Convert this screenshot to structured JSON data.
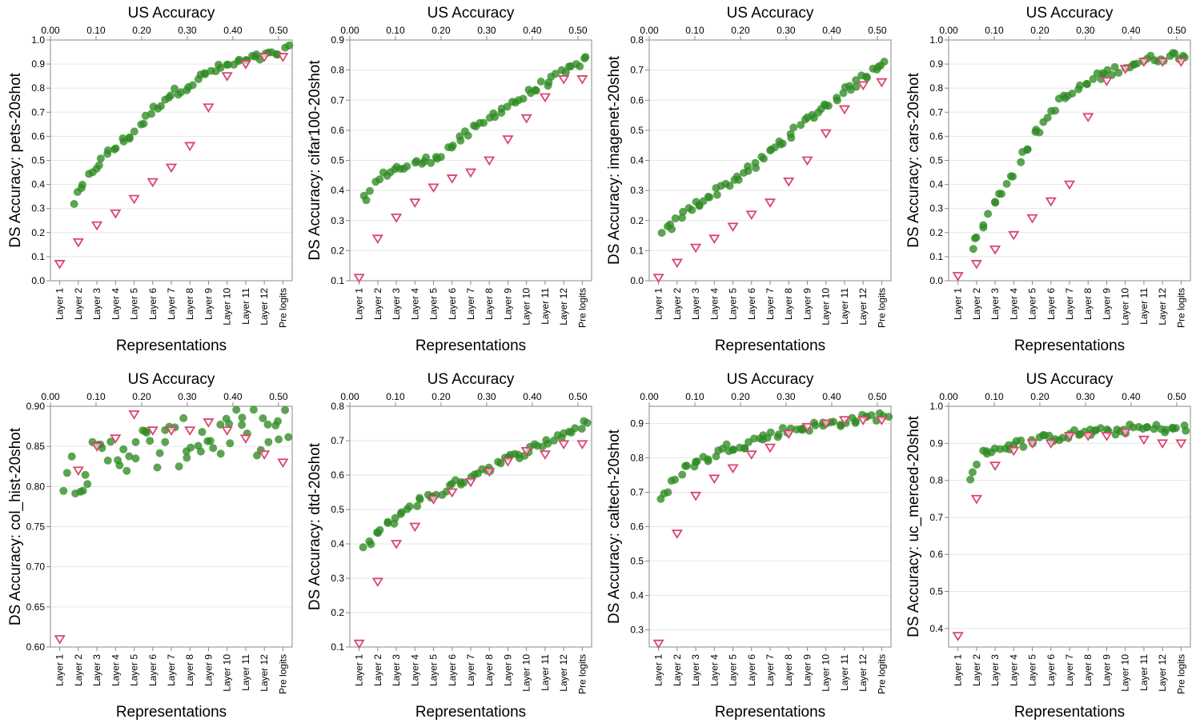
{
  "colors": {
    "dots": "#2e8b22",
    "triangles": "#d9466e",
    "grid": "#e6e6e6",
    "axis": "#888888"
  },
  "common": {
    "top_axis_title": "US Accuracy",
    "x_axis_title": "Representations",
    "top_ticks": [
      "0.00",
      "0.10",
      "0.20",
      "0.30",
      "0.40",
      "0.50"
    ],
    "categories": [
      "Layer 1",
      "Layer 2",
      "Layer 3",
      "Layer 4",
      "Layer 5",
      "Layer 6",
      "Layer 7",
      "Layer 8",
      "Layer 9",
      "Layer 10",
      "Layer 11",
      "Layer 12",
      "Pre logits"
    ]
  },
  "chart_data": [
    {
      "type": "scatter",
      "ylabel": "DS Accuracy: pets-20shot",
      "ylim": [
        0,
        1.0
      ],
      "yticks": [
        "0.0",
        "0.1",
        "0.2",
        "0.3",
        "0.4",
        "0.5",
        "0.6",
        "0.7",
        "0.8",
        "0.9",
        "1.0"
      ],
      "ytick_values": [
        0,
        0.1,
        0.2,
        0.3,
        0.4,
        0.5,
        0.6,
        0.7,
        0.8,
        0.9,
        1.0
      ],
      "xlim": [
        0,
        0.53
      ],
      "us_ticks": [
        0,
        0.1,
        0.2,
        0.3,
        0.4,
        0.5
      ],
      "triangles": [
        0.07,
        0.16,
        0.23,
        0.28,
        0.34,
        0.41,
        0.47,
        0.56,
        0.72,
        0.85,
        0.9,
        0.93,
        0.93
      ],
      "dot_curve": [
        [
          0.05,
          0.32
        ],
        [
          0.09,
          0.45
        ],
        [
          0.12,
          0.52
        ],
        [
          0.16,
          0.58
        ],
        [
          0.19,
          0.63
        ],
        [
          0.23,
          0.72
        ],
        [
          0.26,
          0.77
        ],
        [
          0.31,
          0.82
        ],
        [
          0.35,
          0.87
        ],
        [
          0.4,
          0.9
        ],
        [
          0.44,
          0.92
        ],
        [
          0.49,
          0.94
        ],
        [
          0.52,
          0.96
        ]
      ],
      "dot_range": [
        0.05,
        0.52
      ],
      "dot_count": 60
    },
    {
      "type": "scatter",
      "ylabel": "DS Accuracy: cifar100-20shot",
      "ylim": [
        0.1,
        0.9
      ],
      "yticks": [
        "0.1",
        "0.2",
        "0.3",
        "0.4",
        "0.5",
        "0.6",
        "0.7",
        "0.8",
        "0.9"
      ],
      "ytick_values": [
        0.1,
        0.2,
        0.3,
        0.4,
        0.5,
        0.6,
        0.7,
        0.8,
        0.9
      ],
      "xlim": [
        0,
        0.53
      ],
      "us_ticks": [
        0,
        0.1,
        0.2,
        0.3,
        0.4,
        0.5
      ],
      "triangles": [
        0.11,
        0.24,
        0.31,
        0.36,
        0.41,
        0.44,
        0.46,
        0.5,
        0.57,
        0.64,
        0.71,
        0.77,
        0.77
      ],
      "dot_curve": [
        [
          0.03,
          0.37
        ],
        [
          0.06,
          0.43
        ],
        [
          0.09,
          0.47
        ],
        [
          0.13,
          0.48
        ],
        [
          0.17,
          0.5
        ],
        [
          0.21,
          0.53
        ],
        [
          0.25,
          0.58
        ],
        [
          0.29,
          0.62
        ],
        [
          0.33,
          0.67
        ],
        [
          0.38,
          0.71
        ],
        [
          0.42,
          0.75
        ],
        [
          0.47,
          0.79
        ],
        [
          0.52,
          0.84
        ]
      ],
      "dot_range": [
        0.03,
        0.52
      ],
      "dot_count": 60
    },
    {
      "type": "scatter",
      "ylabel": "DS Accuracy: imagenet-20shot",
      "ylim": [
        0,
        0.8
      ],
      "yticks": [
        "0.0",
        "0.1",
        "0.2",
        "0.3",
        "0.4",
        "0.5",
        "0.6",
        "0.7",
        "0.8"
      ],
      "ytick_values": [
        0,
        0.1,
        0.2,
        0.3,
        0.4,
        0.5,
        0.6,
        0.7,
        0.8
      ],
      "xlim": [
        0,
        0.53
      ],
      "us_ticks": [
        0,
        0.1,
        0.2,
        0.3,
        0.4,
        0.5
      ],
      "triangles": [
        0.01,
        0.06,
        0.11,
        0.14,
        0.18,
        0.22,
        0.26,
        0.33,
        0.4,
        0.49,
        0.57,
        0.65,
        0.66
      ],
      "dot_curve": [
        [
          0.03,
          0.15
        ],
        [
          0.06,
          0.2
        ],
        [
          0.09,
          0.24
        ],
        [
          0.12,
          0.27
        ],
        [
          0.16,
          0.31
        ],
        [
          0.2,
          0.35
        ],
        [
          0.24,
          0.39
        ],
        [
          0.28,
          0.45
        ],
        [
          0.32,
          0.5
        ],
        [
          0.36,
          0.55
        ],
        [
          0.4,
          0.6
        ],
        [
          0.44,
          0.64
        ],
        [
          0.48,
          0.69
        ],
        [
          0.52,
          0.74
        ]
      ],
      "dot_range": [
        0.03,
        0.52
      ],
      "dot_count": 65
    },
    {
      "type": "scatter",
      "ylabel": "DS Accuracy: cars-20shot",
      "ylim": [
        0,
        1.0
      ],
      "yticks": [
        "0.0",
        "0.1",
        "0.2",
        "0.3",
        "0.4",
        "0.5",
        "0.6",
        "0.7",
        "0.8",
        "0.9",
        "1.0"
      ],
      "ytick_values": [
        0,
        0.1,
        0.2,
        0.3,
        0.4,
        0.5,
        0.6,
        0.7,
        0.8,
        0.9,
        1.0
      ],
      "xlim": [
        0,
        0.53
      ],
      "us_ticks": [
        0,
        0.1,
        0.2,
        0.3,
        0.4,
        0.5
      ],
      "triangles": [
        0.02,
        0.07,
        0.13,
        0.19,
        0.26,
        0.33,
        0.4,
        0.68,
        0.83,
        0.88,
        0.91,
        0.91,
        0.91
      ],
      "dot_curve": [
        [
          0.05,
          0.13
        ],
        [
          0.08,
          0.25
        ],
        [
          0.11,
          0.35
        ],
        [
          0.15,
          0.48
        ],
        [
          0.18,
          0.58
        ],
        [
          0.21,
          0.66
        ],
        [
          0.24,
          0.74
        ],
        [
          0.28,
          0.79
        ],
        [
          0.32,
          0.84
        ],
        [
          0.37,
          0.88
        ],
        [
          0.42,
          0.91
        ],
        [
          0.47,
          0.93
        ],
        [
          0.52,
          0.94
        ]
      ],
      "dot_range": [
        0.05,
        0.52
      ],
      "dot_count": 60
    },
    {
      "type": "scatter",
      "ylabel": "DS Accuracy: col_hist-20shot",
      "ylim": [
        0.6,
        0.9
      ],
      "yticks": [
        "0.60",
        "0.65",
        "0.70",
        "0.75",
        "0.80",
        "0.85",
        "0.90"
      ],
      "ytick_values": [
        0.6,
        0.65,
        0.7,
        0.75,
        0.8,
        0.85,
        0.9
      ],
      "xlim": [
        0,
        0.53
      ],
      "us_ticks": [
        0,
        0.1,
        0.2,
        0.3,
        0.4,
        0.5
      ],
      "triangles": [
        0.61,
        0.82,
        0.85,
        0.86,
        0.89,
        0.87,
        0.87,
        0.87,
        0.88,
        0.87,
        0.86,
        0.84,
        0.83
      ],
      "dot_curve": [
        [
          0.03,
          0.818
        ],
        [
          0.07,
          0.823
        ],
        [
          0.11,
          0.83
        ],
        [
          0.15,
          0.845
        ],
        [
          0.19,
          0.852
        ],
        [
          0.23,
          0.845
        ],
        [
          0.27,
          0.852
        ],
        [
          0.31,
          0.858
        ],
        [
          0.35,
          0.862
        ],
        [
          0.4,
          0.866
        ],
        [
          0.45,
          0.868
        ],
        [
          0.52,
          0.868
        ]
      ],
      "dot_range": [
        0.03,
        0.52
      ],
      "dot_count": 62,
      "dot_spread": 0.03
    },
    {
      "type": "scatter",
      "ylabel": "DS Accuracy: dtd-20shot",
      "ylim": [
        0.1,
        0.8
      ],
      "yticks": [
        "0.1",
        "0.2",
        "0.3",
        "0.4",
        "0.5",
        "0.6",
        "0.7",
        "0.8"
      ],
      "ytick_values": [
        0.1,
        0.2,
        0.3,
        0.4,
        0.5,
        0.6,
        0.7,
        0.8
      ],
      "xlim": [
        0,
        0.53
      ],
      "us_ticks": [
        0,
        0.1,
        0.2,
        0.3,
        0.4,
        0.5
      ],
      "triangles": [
        0.11,
        0.29,
        0.4,
        0.45,
        0.53,
        0.55,
        0.58,
        0.61,
        0.64,
        0.67,
        0.66,
        0.69,
        0.69
      ],
      "dot_curve": [
        [
          0.03,
          0.38
        ],
        [
          0.06,
          0.43
        ],
        [
          0.09,
          0.46
        ],
        [
          0.12,
          0.5
        ],
        [
          0.16,
          0.53
        ],
        [
          0.2,
          0.55
        ],
        [
          0.24,
          0.58
        ],
        [
          0.28,
          0.61
        ],
        [
          0.32,
          0.63
        ],
        [
          0.37,
          0.66
        ],
        [
          0.42,
          0.69
        ],
        [
          0.47,
          0.72
        ],
        [
          0.52,
          0.75
        ]
      ],
      "dot_range": [
        0.03,
        0.52
      ],
      "dot_count": 62
    },
    {
      "type": "scatter",
      "ylabel": "DS Accuracy: caltech-20shot",
      "ylim": [
        0.25,
        0.95
      ],
      "yticks": [
        "0.3",
        "0.4",
        "0.5",
        "0.6",
        "0.7",
        "0.8",
        "0.9"
      ],
      "ytick_values": [
        0.3,
        0.4,
        0.5,
        0.6,
        0.7,
        0.8,
        0.9
      ],
      "xlim": [
        0,
        0.53
      ],
      "us_ticks": [
        0,
        0.1,
        0.2,
        0.3,
        0.4,
        0.5
      ],
      "triangles": [
        0.26,
        0.58,
        0.69,
        0.74,
        0.77,
        0.81,
        0.83,
        0.87,
        0.89,
        0.9,
        0.91,
        0.91,
        0.91
      ],
      "dot_curve": [
        [
          0.03,
          0.68
        ],
        [
          0.06,
          0.75
        ],
        [
          0.09,
          0.78
        ],
        [
          0.13,
          0.8
        ],
        [
          0.17,
          0.83
        ],
        [
          0.21,
          0.84
        ],
        [
          0.25,
          0.86
        ],
        [
          0.3,
          0.88
        ],
        [
          0.35,
          0.89
        ],
        [
          0.4,
          0.9
        ],
        [
          0.45,
          0.91
        ],
        [
          0.52,
          0.925
        ]
      ],
      "dot_range": [
        0.03,
        0.52
      ],
      "dot_count": 62
    },
    {
      "type": "scatter",
      "ylabel": "DS Accuracy: uc_merced-20shot",
      "ylim": [
        0.35,
        1.0
      ],
      "yticks": [
        "0.4",
        "0.5",
        "0.6",
        "0.7",
        "0.8",
        "0.9",
        "1.0"
      ],
      "ytick_values": [
        0.4,
        0.5,
        0.6,
        0.7,
        0.8,
        0.9,
        1.0
      ],
      "xlim": [
        0,
        0.53
      ],
      "us_ticks": [
        0,
        0.1,
        0.2,
        0.3,
        0.4,
        0.5
      ],
      "triangles": [
        0.38,
        0.75,
        0.84,
        0.88,
        0.9,
        0.9,
        0.92,
        0.92,
        0.92,
        0.93,
        0.91,
        0.9,
        0.9
      ],
      "dot_curve": [
        [
          0.05,
          0.81
        ],
        [
          0.08,
          0.88
        ],
        [
          0.12,
          0.89
        ],
        [
          0.16,
          0.9
        ],
        [
          0.2,
          0.91
        ],
        [
          0.25,
          0.92
        ],
        [
          0.3,
          0.93
        ],
        [
          0.35,
          0.93
        ],
        [
          0.4,
          0.94
        ],
        [
          0.46,
          0.94
        ],
        [
          0.52,
          0.94
        ]
      ],
      "dot_range": [
        0.05,
        0.52
      ],
      "dot_count": 60
    }
  ]
}
